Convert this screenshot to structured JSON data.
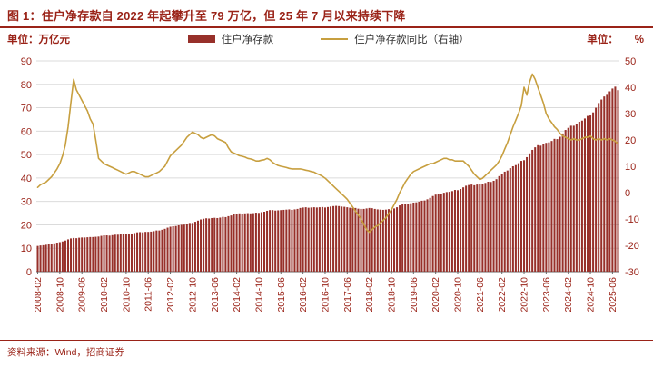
{
  "header": {
    "title": "图 1：住户净存款自 2022 年起攀升至 79 万亿，但 25 年 7 月以来持续下降"
  },
  "units": {
    "left": "单位：万亿元",
    "right_prefix": "单位：",
    "right_unit": "%"
  },
  "legend": {
    "bar_label": "住户净存款",
    "line_label": "住户净存款同比（右轴）"
  },
  "footer": {
    "source": "资料来源：Wind，招商证券"
  },
  "colors": {
    "accent_text": "#9a2318",
    "bar": "#97302a",
    "line": "#c79f3f",
    "grid": "#dbdbdb",
    "axis": "#666666"
  },
  "chart_data": {
    "type": "bar",
    "subtype": "bar+line combo, monthly data",
    "title": "住户净存款自 2022 年起攀升至 79 万亿，但 25 年 7 月以来持续下降",
    "x_frequency": "monthly",
    "x_start": "2008-02",
    "x_end": "2025-08",
    "x_tick_every": 8,
    "x_tick_labels": [
      "2008-02",
      "2008-10",
      "2009-06",
      "2010-02",
      "2010-10",
      "2011-06",
      "2012-02",
      "2012-10",
      "2013-06",
      "2014-02",
      "2014-10",
      "2015-06",
      "2016-02",
      "2016-10",
      "2017-06",
      "2018-02",
      "2018-10",
      "2019-06",
      "2020-02",
      "2020-10",
      "2021-06",
      "2022-02",
      "2022-10",
      "2023-06",
      "2024-02",
      "2024-10",
      "2025-06"
    ],
    "left_axis": {
      "label": "单位：万亿元",
      "min": 0,
      "max": 90,
      "step": 10
    },
    "right_axis": {
      "label": "单位：%",
      "min": -30,
      "max": 50,
      "step": 10
    },
    "grid": "horizontal",
    "legend_position": "top-center",
    "series": [
      {
        "name": "住户净存款",
        "type": "bar",
        "axis": "left",
        "color": "#97302a",
        "values": [
          11.0,
          11.2,
          11.3,
          11.5,
          11.8,
          11.9,
          12.1,
          12.4,
          12.6,
          12.9,
          13.3,
          13.8,
          14.2,
          14.4,
          14.3,
          14.5,
          14.6,
          14.6,
          14.7,
          14.8,
          14.8,
          14.9,
          15.0,
          15.3,
          15.5,
          15.5,
          15.4,
          15.6,
          15.8,
          15.8,
          15.9,
          16.1,
          16.0,
          16.2,
          16.3,
          16.5,
          16.8,
          16.9,
          16.8,
          17.0,
          17.0,
          17.1,
          17.3,
          17.6,
          17.6,
          17.9,
          18.3,
          18.8,
          19.2,
          19.4,
          19.5,
          19.8,
          20.0,
          20.1,
          20.4,
          20.8,
          20.8,
          21.3,
          21.8,
          22.3,
          22.6,
          22.8,
          22.7,
          22.9,
          23.0,
          22.9,
          23.1,
          23.4,
          23.3,
          23.7,
          24.0,
          24.5,
          24.8,
          24.9,
          24.8,
          24.9,
          25.0,
          24.9,
          25.0,
          25.2,
          25.1,
          25.4,
          25.6,
          26.0,
          26.3,
          26.3,
          26.1,
          26.2,
          26.3,
          26.4,
          26.5,
          26.6,
          26.4,
          26.6,
          26.8,
          27.2,
          27.4,
          27.5,
          27.3,
          27.4,
          27.5,
          27.4,
          27.5,
          27.6,
          27.4,
          27.6,
          27.8,
          28.0,
          28.1,
          28.0,
          27.8,
          27.7,
          27.5,
          27.3,
          27.2,
          27.2,
          26.9,
          26.8,
          26.8,
          27.0,
          27.2,
          27.1,
          26.8,
          26.6,
          26.5,
          26.4,
          26.5,
          26.7,
          26.6,
          27.0,
          27.5,
          28.3,
          28.8,
          29.0,
          28.9,
          29.2,
          29.5,
          29.6,
          29.9,
          30.3,
          30.4,
          30.9,
          31.5,
          32.3,
          32.9,
          33.3,
          33.3,
          33.7,
          34.0,
          34.1,
          34.4,
          34.9,
          34.8,
          35.3,
          36.0,
          36.7,
          37.0,
          37.2,
          36.9,
          37.2,
          37.5,
          37.6,
          37.9,
          38.4,
          38.3,
          38.8,
          39.5,
          40.8,
          41.8,
          42.7,
          43.2,
          44.2,
          45.0,
          45.5,
          46.3,
          47.3,
          47.6,
          48.9,
          50.5,
          52.0,
          53.1,
          54.0,
          53.8,
          54.5,
          55.0,
          55.2,
          55.8,
          56.7,
          56.6,
          57.6,
          59.0,
          60.5,
          61.4,
          62.3,
          62.3,
          63.2,
          64.0,
          64.5,
          65.4,
          66.5,
          66.7,
          68.0,
          70.0,
          72.0,
          73.5,
          74.8,
          75.5,
          77.0,
          78.2,
          79.0,
          77.5
        ]
      },
      {
        "name": "住户净存款同比（右轴）",
        "type": "line",
        "axis": "right",
        "color": "#c79f3f",
        "values": [
          2,
          3,
          3.5,
          4,
          5,
          6,
          7.5,
          9,
          11,
          14,
          18,
          25,
          34,
          43,
          39,
          37,
          35,
          33,
          31,
          28,
          26,
          20,
          13,
          12,
          11,
          10.5,
          10,
          9.5,
          9,
          8.5,
          8,
          7.5,
          7,
          7.5,
          8,
          8,
          7.5,
          7,
          6.5,
          6,
          6,
          6.5,
          7,
          7.5,
          8,
          9,
          10,
          12,
          14,
          15,
          16,
          17,
          18,
          19.5,
          21,
          22,
          23,
          22.5,
          22,
          21,
          20.5,
          21,
          21.5,
          22,
          21.5,
          20.5,
          20,
          19.5,
          19,
          17,
          15.5,
          15,
          14.5,
          14,
          13.8,
          13.5,
          13,
          12.8,
          12.5,
          12,
          12,
          12.3,
          12.5,
          13,
          12.5,
          11.5,
          10.8,
          10.3,
          10,
          9.8,
          9.5,
          9.2,
          9,
          9,
          9,
          9,
          8.8,
          8.5,
          8.3,
          8,
          7.8,
          7.2,
          6.8,
          6.2,
          5.5,
          4.5,
          3.5,
          2.5,
          1.5,
          0.5,
          -0.5,
          -1.5,
          -2.5,
          -4,
          -5.5,
          -7,
          -8.5,
          -10,
          -12,
          -14,
          -15,
          -14,
          -13,
          -12.5,
          -11.5,
          -10.5,
          -9.5,
          -8,
          -6.5,
          -4.5,
          -2.5,
          0,
          2,
          4,
          5.5,
          7,
          8,
          8.5,
          9,
          9.5,
          10,
          10.5,
          11,
          11,
          11.5,
          12,
          12.5,
          13,
          13,
          12.5,
          12.5,
          12,
          12,
          12,
          12,
          11,
          10,
          8.5,
          7,
          6,
          5,
          5.5,
          6.5,
          7.5,
          8.5,
          9.5,
          10.5,
          12,
          14,
          16.5,
          19,
          22,
          25,
          27.5,
          30,
          33,
          40,
          37,
          42,
          45,
          43,
          40,
          37,
          34,
          30,
          28,
          26.5,
          25,
          24,
          22.5,
          21.5,
          21,
          20.5,
          20,
          20.5,
          20,
          20,
          20.5,
          21,
          21,
          21.5,
          20.5,
          20,
          20.5,
          20,
          20.5,
          20,
          20.5,
          20,
          19.5,
          18.5
        ]
      }
    ]
  }
}
